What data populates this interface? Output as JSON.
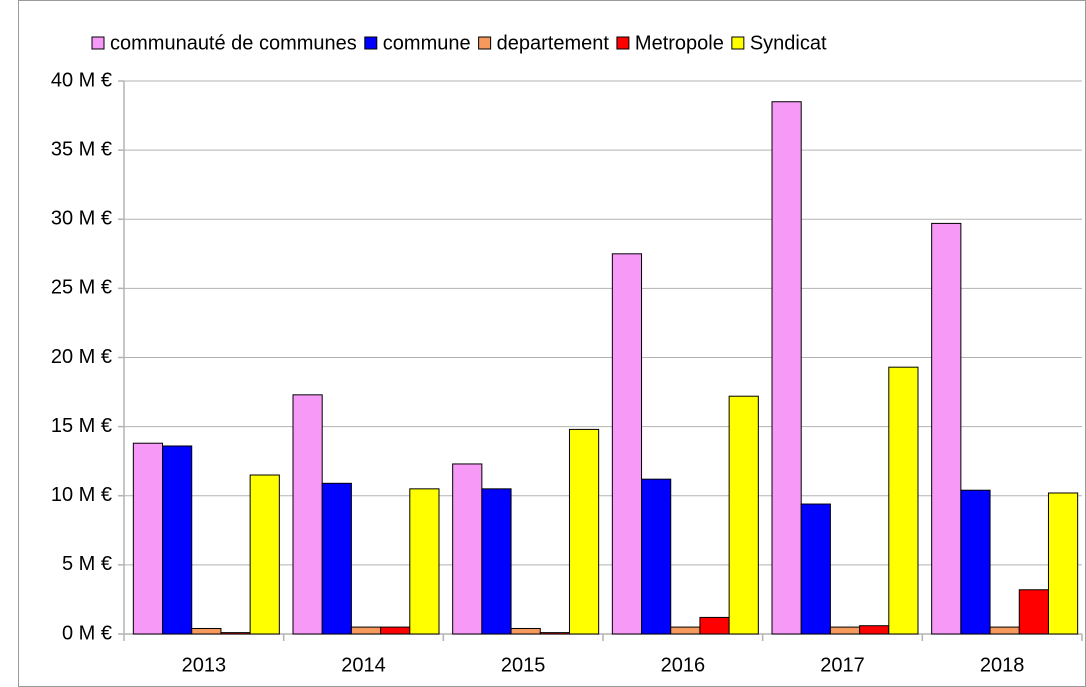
{
  "chart_data": {
    "type": "bar",
    "categories": [
      "2013",
      "2014",
      "2015",
      "2016",
      "2017",
      "2018"
    ],
    "series": [
      {
        "name": "communauté de communes",
        "color": "#f799f7",
        "values": [
          13.8,
          17.3,
          12.3,
          27.5,
          38.5,
          29.7
        ]
      },
      {
        "name": "commune",
        "color": "#0000ff",
        "values": [
          13.6,
          10.9,
          10.5,
          11.2,
          9.4,
          10.4
        ]
      },
      {
        "name": "departement",
        "color": "#f5995c",
        "values": [
          0.4,
          0.5,
          0.4,
          0.5,
          0.5,
          0.5
        ]
      },
      {
        "name": "Metropole",
        "color": "#ff0000",
        "values": [
          0.1,
          0.5,
          0.1,
          1.2,
          0.6,
          3.2
        ]
      },
      {
        "name": "Syndicat",
        "color": "#ffff00",
        "values": [
          11.5,
          10.5,
          14.8,
          17.2,
          19.3,
          10.2
        ]
      }
    ],
    "ylim": [
      0,
      40
    ],
    "yticks": [
      {
        "value": 0,
        "label": "0 M €"
      },
      {
        "value": 5,
        "label": "5 M €"
      },
      {
        "value": 10,
        "label": "10 M €"
      },
      {
        "value": 15,
        "label": "15 M €"
      },
      {
        "value": 20,
        "label": "20 M €"
      },
      {
        "value": 25,
        "label": "25 M €"
      },
      {
        "value": 30,
        "label": "30 M €"
      },
      {
        "value": 35,
        "label": "35 M €"
      },
      {
        "value": 40,
        "label": "40 M €"
      }
    ],
    "grid": true,
    "legend": "top"
  }
}
